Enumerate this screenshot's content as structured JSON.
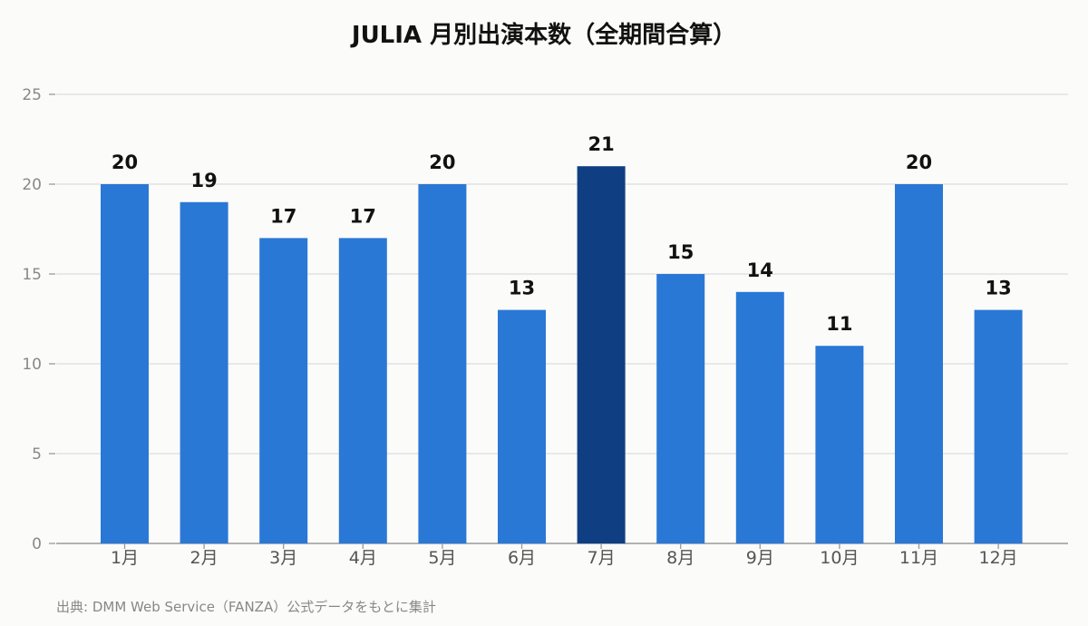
{
  "source_note": "出典: DMM Web Service（FANZA）公式データをもとに集計",
  "colors": {
    "bar": "#2a78d6",
    "highlight": "#0f3f82",
    "grid": "#dddddd",
    "axis": "#999999",
    "tick_text": "#888888",
    "category_text": "#555555",
    "value_text": "#111111"
  },
  "chart_data": {
    "type": "bar",
    "title": "JULIA 月別出演本数（全期間合算）",
    "xlabel": "",
    "ylabel": "",
    "ylim": [
      0,
      25
    ],
    "yticks": [
      0,
      5,
      10,
      15,
      20,
      25
    ],
    "grid": true,
    "categories": [
      "1月",
      "2月",
      "3月",
      "4月",
      "5月",
      "6月",
      "7月",
      "8月",
      "9月",
      "10月",
      "11月",
      "12月"
    ],
    "values": [
      20,
      19,
      17,
      17,
      20,
      13,
      21,
      15,
      14,
      11,
      20,
      13
    ],
    "highlight_category": "7月"
  }
}
